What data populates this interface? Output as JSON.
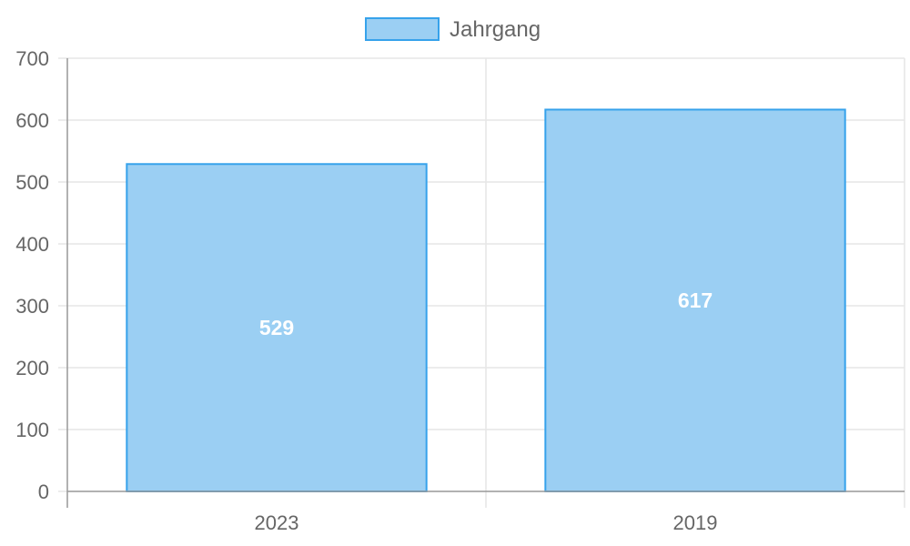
{
  "chart_data": {
    "type": "bar",
    "categories": [
      "2023",
      "2019"
    ],
    "series": [
      {
        "name": "Jahrgang",
        "values": [
          529,
          617
        ]
      }
    ],
    "data_labels": [
      "529",
      "617"
    ],
    "ylim": [
      0,
      700
    ],
    "yticks": [
      "0",
      "100",
      "200",
      "300",
      "400",
      "500",
      "600",
      "700"
    ],
    "ytick_values": [
      0,
      100,
      200,
      300,
      400,
      500,
      600,
      700
    ],
    "grid": true,
    "legend_position": "top-center",
    "colors": {
      "bar_fill": "#9bcff3",
      "bar_stroke": "#36a2eb",
      "grid": "#e6e6e6",
      "axis": "#999999",
      "text": "#666666",
      "data_label": "#ffffff"
    }
  }
}
